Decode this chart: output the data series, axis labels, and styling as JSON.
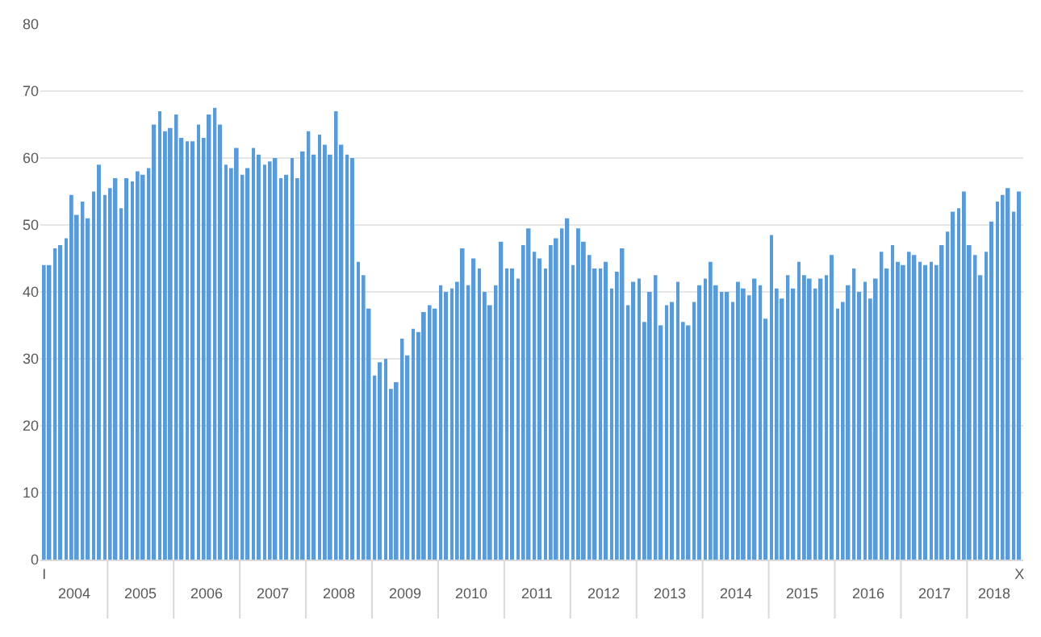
{
  "chart_data": {
    "type": "bar",
    "categories": [
      "I",
      null,
      null,
      null,
      null,
      null,
      null,
      null,
      null,
      null,
      null,
      null,
      null,
      null,
      null,
      null,
      null,
      null,
      null,
      null,
      null,
      null,
      null,
      null,
      null,
      null,
      null,
      null,
      null,
      null,
      null,
      null,
      null,
      null,
      null,
      null,
      null,
      null,
      null,
      null,
      null,
      null,
      null,
      null,
      null,
      null,
      null,
      null,
      null,
      null,
      null,
      null,
      null,
      null,
      null,
      null,
      null,
      null,
      null,
      null,
      null,
      null,
      null,
      null,
      null,
      null,
      null,
      null,
      null,
      null,
      null,
      null,
      null,
      null,
      null,
      null,
      null,
      null,
      null,
      null,
      null,
      null,
      null,
      null,
      null,
      null,
      null,
      null,
      null,
      null,
      null,
      null,
      null,
      null,
      null,
      null,
      null,
      null,
      null,
      null,
      null,
      null,
      null,
      null,
      null,
      null,
      null,
      null,
      null,
      null,
      null,
      null,
      null,
      null,
      null,
      null,
      null,
      null,
      null,
      null,
      null,
      null,
      null,
      null,
      null,
      null,
      null,
      null,
      null,
      null,
      null,
      null,
      null,
      null,
      null,
      null,
      null,
      null,
      null,
      null,
      null,
      null,
      null,
      null,
      null,
      null,
      null,
      null,
      null,
      null,
      null,
      null,
      null,
      null,
      null,
      null,
      null,
      null,
      null,
      null,
      null,
      null,
      null,
      null,
      null,
      null,
      null,
      null,
      null,
      null,
      null,
      null,
      null,
      null,
      null,
      null,
      null,
      "X"
    ],
    "values": [
      44,
      44,
      46.5,
      47,
      48,
      54.5,
      51.5,
      53.5,
      51,
      55,
      59,
      54.5,
      55.5,
      57,
      52.5,
      57,
      56.5,
      58,
      57.5,
      58.5,
      65,
      67,
      64,
      64.5,
      66.5,
      63,
      62.5,
      62.5,
      65,
      63,
      66.5,
      67.5,
      65,
      59,
      58.5,
      61.5,
      57.5,
      58.5,
      61.5,
      60.5,
      59,
      59.5,
      60,
      57,
      57.5,
      60,
      57,
      61,
      64,
      60.5,
      63.5,
      62,
      60.5,
      67,
      62,
      60.5,
      60,
      44.5,
      42.5,
      37.5,
      27.5,
      29.5,
      30,
      25.5,
      26.5,
      33,
      30.5,
      34.5,
      34,
      37,
      38,
      37.5,
      41,
      40,
      40.5,
      41.5,
      46.5,
      41,
      45,
      43.5,
      40,
      38,
      41,
      47.5,
      43.5,
      43.5,
      42,
      47,
      49.5,
      46,
      45,
      43.5,
      47,
      48,
      49.5,
      51,
      44,
      49.5,
      47.5,
      45.5,
      43.5,
      43.5,
      44.5,
      40.5,
      43,
      46.5,
      38,
      41.5,
      42,
      35.5,
      40,
      42.5,
      35,
      38,
      38.5,
      41.5,
      35.5,
      35,
      38.5,
      41,
      42,
      44.5,
      41,
      40,
      40,
      38.5,
      41.5,
      40.5,
      39.5,
      42,
      41,
      36,
      48.5,
      40.5,
      39,
      42.5,
      40.5,
      44.5,
      42.5,
      42,
      40.5,
      42,
      42.5,
      45.5,
      37.5,
      38.5,
      41,
      43.5,
      40,
      41.5,
      39,
      42,
      46,
      43.5,
      47,
      44.5,
      44,
      46,
      45.5,
      44.5,
      44,
      44.5,
      44,
      47,
      49,
      52,
      52.5,
      55,
      47,
      45.5,
      42.5,
      46,
      50.5,
      53.5,
      54.5,
      55.5,
      52,
      55
    ],
    "color": "#5b9bd5",
    "ylim": [
      0,
      80
    ],
    "yticks": [
      0,
      10,
      20,
      30,
      40,
      50,
      60,
      70,
      80
    ],
    "grid": "y",
    "annotations": [
      "2004",
      "2005",
      "2006",
      "2007",
      "2008",
      "2009",
      "2010",
      "2011",
      "2012",
      "2013",
      "2014",
      "2015",
      "2016",
      "2017",
      "2018"
    ]
  }
}
